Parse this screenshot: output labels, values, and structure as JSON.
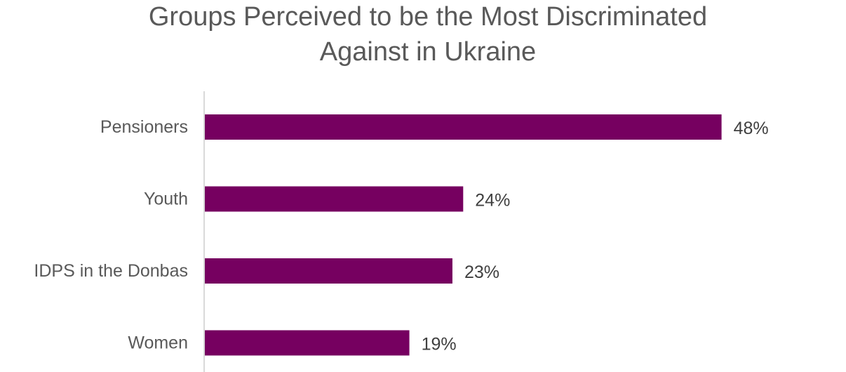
{
  "chart_data": {
    "type": "bar",
    "orientation": "horizontal",
    "title": "Groups Perceived to be the Most Discriminated Against in Ukraine",
    "title_lines": [
      "Groups Perceived to be the Most Discriminated",
      "Against in Ukraine"
    ],
    "categories": [
      "Pensioners",
      "Youth",
      "IDPS in the Donbas",
      "Women"
    ],
    "values": [
      48,
      24,
      23,
      19
    ],
    "value_labels": [
      "48%",
      "24%",
      "23%",
      "19%"
    ],
    "xlabel": "",
    "ylabel": "",
    "xlim": [
      0,
      55
    ],
    "grid": false,
    "legend": "none",
    "bar_color": "#760060",
    "axis_color": "#d9d9d9"
  }
}
